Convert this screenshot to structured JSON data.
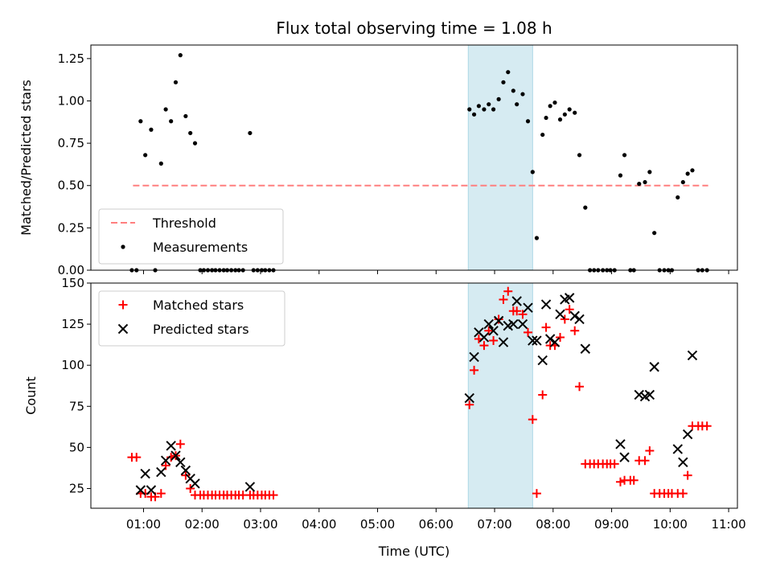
{
  "figure": {
    "title": "Flux total observing time = 1.08 h",
    "xlabel": "Time (UTC)",
    "x_tick_labels": [
      "01:00",
      "02:00",
      "03:00",
      "04:00",
      "05:00",
      "06:00",
      "07:00",
      "08:00",
      "09:00",
      "10:00",
      "11:00"
    ],
    "highlight_color": "#add8e6",
    "highlight_alpha": 0.5
  },
  "chart_data": [
    {
      "type": "scatter",
      "title": "Flux total observing time = 1.08 h",
      "ylabel": "Matched/Predicted stars",
      "xlabel": "",
      "x_units": "hours UTC",
      "xlim": [
        0.1,
        11.15
      ],
      "ylim": [
        0,
        1.33
      ],
      "yticks": [
        0.0,
        0.25,
        0.5,
        0.75,
        1.0,
        1.25
      ],
      "ytick_labels": [
        "0.00",
        "0.25",
        "0.50",
        "0.75",
        "1.00",
        "1.25"
      ],
      "highlight_span": [
        6.55,
        7.65
      ],
      "legend": {
        "placement": "lower-left",
        "entries": [
          "Threshold",
          "Measurements"
        ]
      },
      "series": [
        {
          "name": "Threshold",
          "kind": "dashed-line",
          "color": "#ff7f7f",
          "points": [
            [
              0.82,
              0.5
            ],
            [
              10.65,
              0.5
            ]
          ]
        },
        {
          "name": "Measurements",
          "kind": "dot",
          "color": "#000000",
          "points": [
            [
              0.8,
              0.0
            ],
            [
              0.88,
              0.0
            ],
            [
              0.95,
              0.88
            ],
            [
              1.03,
              0.68
            ],
            [
              1.13,
              0.83
            ],
            [
              1.2,
              0.0
            ],
            [
              1.3,
              0.63
            ],
            [
              1.38,
              0.95
            ],
            [
              1.47,
              0.88
            ],
            [
              1.55,
              1.11
            ],
            [
              1.63,
              1.27
            ],
            [
              1.72,
              0.91
            ],
            [
              1.8,
              0.81
            ],
            [
              1.88,
              0.75
            ],
            [
              1.97,
              0.0
            ],
            [
              2.03,
              0.0
            ],
            [
              2.1,
              0.0
            ],
            [
              2.17,
              0.0
            ],
            [
              2.23,
              0.0
            ],
            [
              2.3,
              0.0
            ],
            [
              2.37,
              0.0
            ],
            [
              2.43,
              0.0
            ],
            [
              2.5,
              0.0
            ],
            [
              2.57,
              0.0
            ],
            [
              2.63,
              0.0
            ],
            [
              2.7,
              0.0
            ],
            [
              2.82,
              0.81
            ],
            [
              2.88,
              0.0
            ],
            [
              2.95,
              0.0
            ],
            [
              3.02,
              0.0
            ],
            [
              3.08,
              0.0
            ],
            [
              3.15,
              0.0
            ],
            [
              3.22,
              0.0
            ],
            [
              6.57,
              0.95
            ],
            [
              6.65,
              0.92
            ],
            [
              6.73,
              0.97
            ],
            [
              6.82,
              0.95
            ],
            [
              6.9,
              0.98
            ],
            [
              6.98,
              0.95
            ],
            [
              7.07,
              1.01
            ],
            [
              7.15,
              1.11
            ],
            [
              7.23,
              1.17
            ],
            [
              7.32,
              1.06
            ],
            [
              7.38,
              0.98
            ],
            [
              7.48,
              1.04
            ],
            [
              7.57,
              0.88
            ],
            [
              7.65,
              0.58
            ],
            [
              7.72,
              0.19
            ],
            [
              7.82,
              0.8
            ],
            [
              7.88,
              0.9
            ],
            [
              7.95,
              0.97
            ],
            [
              8.03,
              0.99
            ],
            [
              8.12,
              0.89
            ],
            [
              8.2,
              0.92
            ],
            [
              8.28,
              0.95
            ],
            [
              8.37,
              0.93
            ],
            [
              8.45,
              0.68
            ],
            [
              8.55,
              0.37
            ],
            [
              8.63,
              0.0
            ],
            [
              8.7,
              0.0
            ],
            [
              8.77,
              0.0
            ],
            [
              8.85,
              0.0
            ],
            [
              8.92,
              0.0
            ],
            [
              8.98,
              0.0
            ],
            [
              9.05,
              0.0
            ],
            [
              9.15,
              0.56
            ],
            [
              9.22,
              0.68
            ],
            [
              9.32,
              0.0
            ],
            [
              9.38,
              0.0
            ],
            [
              9.47,
              0.51
            ],
            [
              9.57,
              0.52
            ],
            [
              9.65,
              0.58
            ],
            [
              9.73,
              0.22
            ],
            [
              9.82,
              0.0
            ],
            [
              9.9,
              0.0
            ],
            [
              9.97,
              0.0
            ],
            [
              10.03,
              0.0
            ],
            [
              10.13,
              0.43
            ],
            [
              10.22,
              0.52
            ],
            [
              10.3,
              0.57
            ],
            [
              10.38,
              0.59
            ],
            [
              10.48,
              0.0
            ],
            [
              10.55,
              0.0
            ],
            [
              10.63,
              0.0
            ]
          ]
        }
      ]
    },
    {
      "type": "scatter",
      "title": "",
      "ylabel": "Count",
      "xlabel": "Time (UTC)",
      "x_units": "hours UTC",
      "xlim": [
        0.1,
        11.15
      ],
      "ylim": [
        13,
        150
      ],
      "yticks": [
        25,
        50,
        75,
        100,
        125,
        150
      ],
      "ytick_labels": [
        "25",
        "50",
        "75",
        "100",
        "125",
        "150"
      ],
      "highlight_span": [
        6.55,
        7.65
      ],
      "legend": {
        "placement": "upper-left",
        "entries": [
          "Matched stars",
          "Predicted stars"
        ]
      },
      "series": [
        {
          "name": "Matched stars",
          "kind": "plus",
          "color": "#ff0000",
          "points": [
            [
              0.8,
              44
            ],
            [
              0.88,
              44
            ],
            [
              0.95,
              22
            ],
            [
              1.03,
              22
            ],
            [
              1.13,
              20
            ],
            [
              1.2,
              20
            ],
            [
              1.3,
              22
            ],
            [
              1.38,
              39
            ],
            [
              1.47,
              44
            ],
            [
              1.55,
              45
            ],
            [
              1.63,
              52
            ],
            [
              1.72,
              33
            ],
            [
              1.8,
              25
            ],
            [
              1.88,
              21
            ],
            [
              1.97,
              21
            ],
            [
              2.03,
              21
            ],
            [
              2.1,
              21
            ],
            [
              2.17,
              21
            ],
            [
              2.23,
              21
            ],
            [
              2.3,
              21
            ],
            [
              2.37,
              21
            ],
            [
              2.43,
              21
            ],
            [
              2.5,
              21
            ],
            [
              2.57,
              21
            ],
            [
              2.63,
              21
            ],
            [
              2.7,
              21
            ],
            [
              2.82,
              21
            ],
            [
              2.88,
              21
            ],
            [
              2.95,
              21
            ],
            [
              3.02,
              21
            ],
            [
              3.08,
              21
            ],
            [
              3.15,
              21
            ],
            [
              3.22,
              21
            ],
            [
              6.57,
              76
            ],
            [
              6.65,
              97
            ],
            [
              6.73,
              116
            ],
            [
              6.82,
              112
            ],
            [
              6.9,
              121
            ],
            [
              6.98,
              115
            ],
            [
              7.07,
              128
            ],
            [
              7.15,
              140
            ],
            [
              7.23,
              145
            ],
            [
              7.32,
              133
            ],
            [
              7.38,
              133
            ],
            [
              7.48,
              131
            ],
            [
              7.57,
              120
            ],
            [
              7.65,
              67
            ],
            [
              7.72,
              22
            ],
            [
              7.82,
              82
            ],
            [
              7.88,
              123
            ],
            [
              7.95,
              112
            ],
            [
              8.03,
              112
            ],
            [
              8.12,
              117
            ],
            [
              8.2,
              128
            ],
            [
              8.28,
              134
            ],
            [
              8.37,
              121
            ],
            [
              8.45,
              87
            ],
            [
              8.55,
              40
            ],
            [
              8.63,
              40
            ],
            [
              8.7,
              40
            ],
            [
              8.77,
              40
            ],
            [
              8.85,
              40
            ],
            [
              8.92,
              40
            ],
            [
              8.98,
              40
            ],
            [
              9.05,
              40
            ],
            [
              9.15,
              29
            ],
            [
              9.22,
              30
            ],
            [
              9.32,
              30
            ],
            [
              9.38,
              30
            ],
            [
              9.47,
              42
            ],
            [
              9.57,
              42
            ],
            [
              9.65,
              48
            ],
            [
              9.73,
              22
            ],
            [
              9.82,
              22
            ],
            [
              9.9,
              22
            ],
            [
              9.97,
              22
            ],
            [
              10.03,
              22
            ],
            [
              10.13,
              22
            ],
            [
              10.22,
              22
            ],
            [
              10.3,
              33
            ],
            [
              10.38,
              63
            ],
            [
              10.48,
              63
            ],
            [
              10.55,
              63
            ],
            [
              10.63,
              63
            ]
          ]
        },
        {
          "name": "Predicted stars",
          "kind": "x",
          "color": "#000000",
          "points": [
            [
              0.95,
              24
            ],
            [
              1.03,
              34
            ],
            [
              1.13,
              24
            ],
            [
              1.3,
              35
            ],
            [
              1.38,
              42
            ],
            [
              1.47,
              51
            ],
            [
              1.55,
              45
            ],
            [
              1.63,
              41
            ],
            [
              1.72,
              36
            ],
            [
              1.8,
              31
            ],
            [
              1.88,
              28
            ],
            [
              2.82,
              26
            ],
            [
              6.57,
              80
            ],
            [
              6.65,
              105
            ],
            [
              6.73,
              120
            ],
            [
              6.82,
              117
            ],
            [
              6.9,
              125
            ],
            [
              6.98,
              121
            ],
            [
              7.07,
              127
            ],
            [
              7.15,
              114
            ],
            [
              7.23,
              124
            ],
            [
              7.32,
              125
            ],
            [
              7.38,
              139
            ],
            [
              7.48,
              125
            ],
            [
              7.57,
              135
            ],
            [
              7.65,
              115
            ],
            [
              7.72,
              115
            ],
            [
              7.82,
              103
            ],
            [
              7.88,
              137
            ],
            [
              7.95,
              116
            ],
            [
              8.03,
              114
            ],
            [
              8.12,
              131
            ],
            [
              8.2,
              140
            ],
            [
              8.28,
              141
            ],
            [
              8.37,
              130
            ],
            [
              8.45,
              128
            ],
            [
              8.55,
              110
            ],
            [
              9.15,
              52
            ],
            [
              9.22,
              44
            ],
            [
              9.47,
              82
            ],
            [
              9.57,
              81
            ],
            [
              9.65,
              82
            ],
            [
              9.73,
              99
            ],
            [
              10.13,
              49
            ],
            [
              10.22,
              41
            ],
            [
              10.3,
              58
            ],
            [
              10.38,
              106
            ]
          ]
        }
      ]
    }
  ]
}
